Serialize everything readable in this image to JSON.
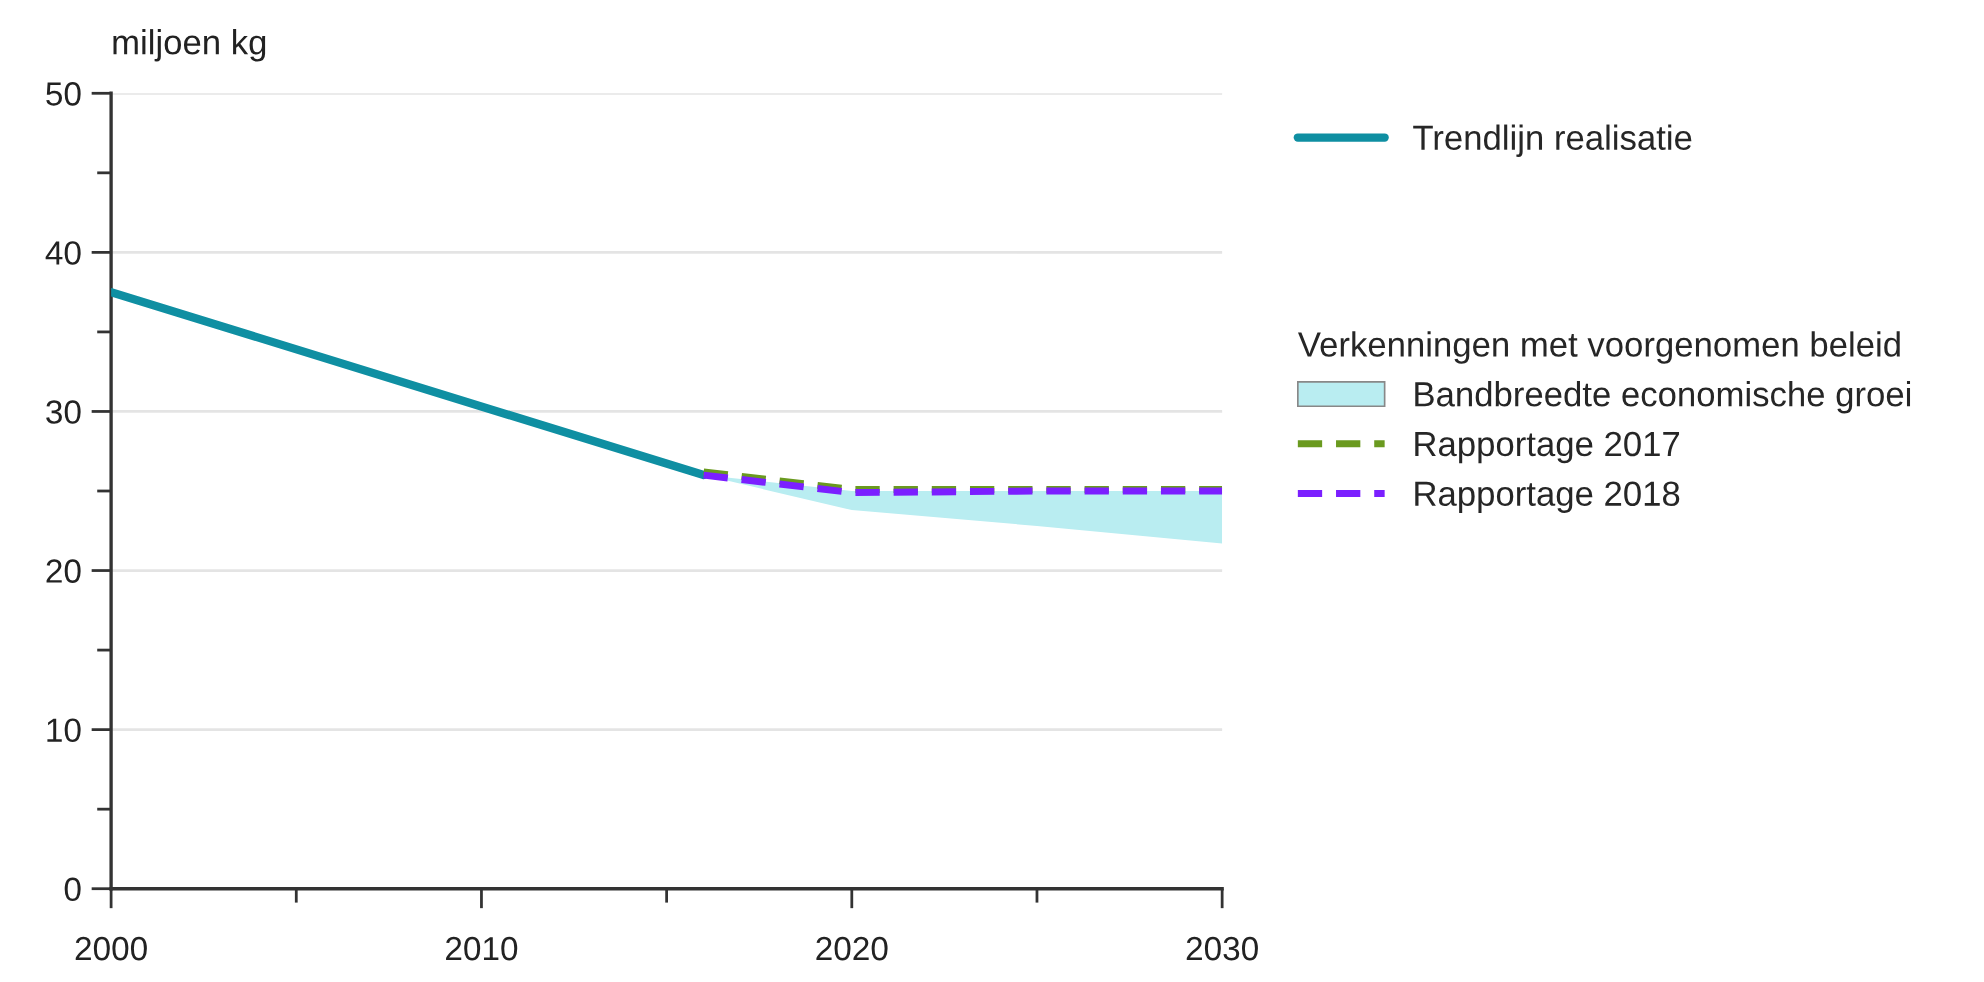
{
  "chart_data": {
    "type": "line",
    "ylabel": "miljoen kg",
    "legend_title": "Verkenningen met voorgenomen beleid",
    "xlim": [
      2000,
      2030
    ],
    "xticks": [
      2000,
      {
        "value": 2005,
        "label": null
      },
      2010,
      {
        "value": 2015,
        "label": null
      },
      2020,
      {
        "value": 2025,
        "label": null
      },
      2030
    ],
    "ylim": [
      0,
      50
    ],
    "yticks": [
      0,
      {
        "value": 5,
        "label": null
      },
      10,
      {
        "value": 15,
        "label": null
      },
      20,
      {
        "value": 25,
        "label": null
      },
      30,
      {
        "value": 35,
        "label": null
      },
      40,
      {
        "value": 45,
        "label": null
      },
      50
    ],
    "grid": "y",
    "legend": "right",
    "marker": "none",
    "series": [
      {
        "name": "Trendlijn realisatie",
        "line_style": "solid",
        "color": "#0f8fa2",
        "x": [
          2000,
          2016
        ],
        "values": [
          37.5,
          26
        ]
      },
      {
        "name": "Bandbreedte economische groei",
        "type": "area",
        "color": "#b9edf1",
        "x": [
          2016,
          2020,
          2025,
          2030
        ],
        "values": [
          null,
          null,
          null,
          null
        ],
        "upper": [
          26,
          25,
          25,
          25
        ],
        "lower": [
          26,
          23.8,
          22.8,
          21.7
        ]
      },
      {
        "name": "Rapportage 2017",
        "line_style": "dashed",
        "color": "#6a9a1f",
        "x": [
          2016,
          2020,
          2025,
          2030
        ],
        "values": [
          26.2,
          25.1,
          25.1,
          25.1
        ]
      },
      {
        "name": "Rapportage 2018",
        "line_style": "dashed",
        "color": "#7b1fff",
        "x": [
          2016,
          2020,
          2025,
          2030
        ],
        "values": [
          26,
          24.9,
          25,
          25
        ]
      }
    ]
  }
}
